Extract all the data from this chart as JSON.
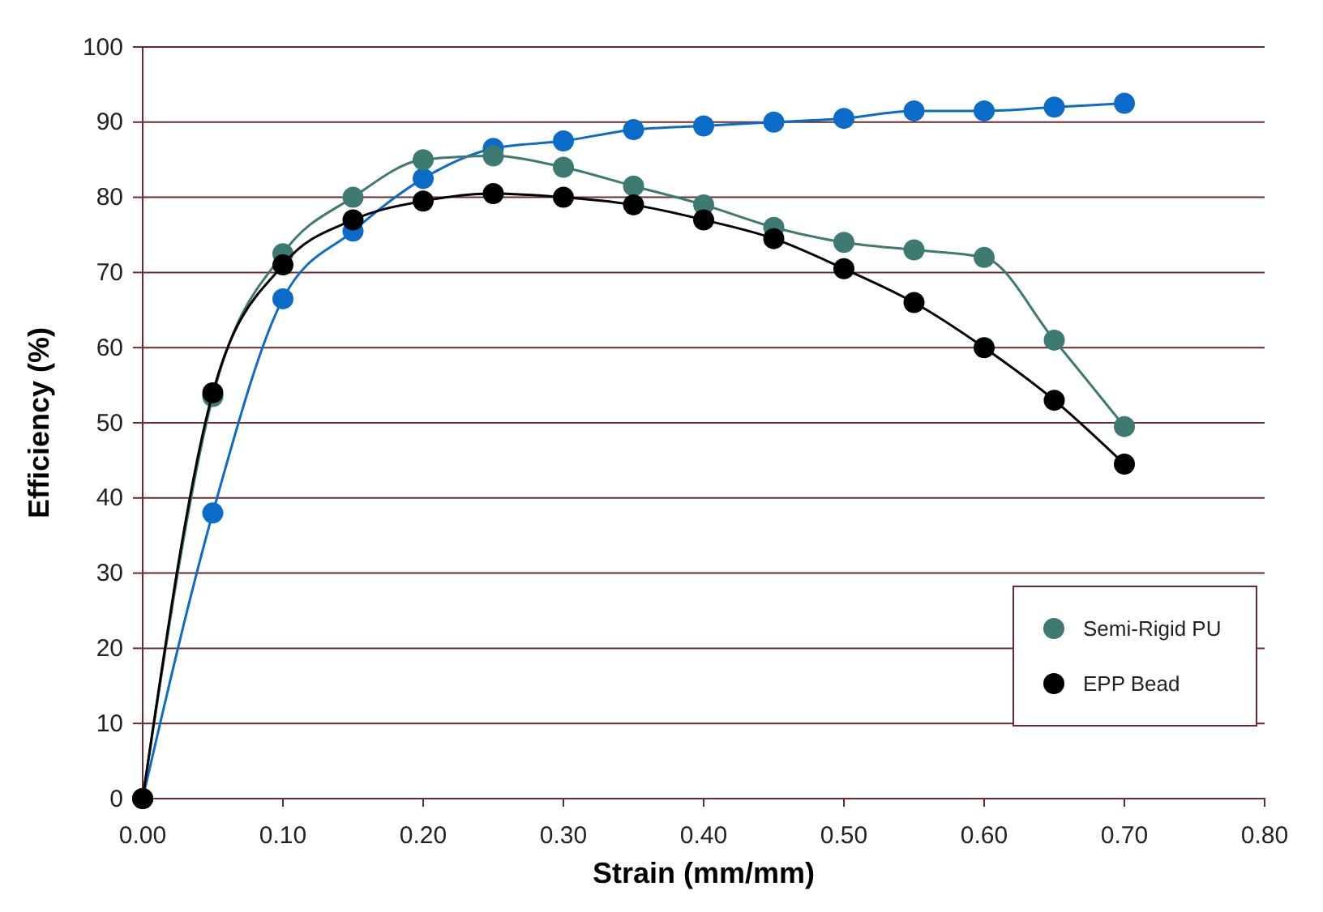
{
  "chart_data": {
    "type": "line",
    "xlabel": "Strain (mm/mm)",
    "ylabel": "Efficiency (%)",
    "x": [
      0,
      0.05,
      0.1,
      0.15,
      0.2,
      0.25,
      0.3,
      0.35,
      0.4,
      0.45,
      0.5,
      0.55,
      0.6,
      0.65,
      0.7
    ],
    "series": [
      {
        "color": "#0a6cc8",
        "values": [
          0,
          38,
          66.5,
          75.5,
          82.5,
          86.5,
          87.5,
          89,
          89.5,
          90,
          90.5,
          91.5,
          91.5,
          92,
          92.5
        ]
      },
      {
        "name": "Semi-Rigid PU",
        "color": "#3c7a72",
        "values": [
          0,
          53.5,
          72.5,
          80,
          85,
          85.5,
          84,
          81.5,
          79,
          76,
          74,
          73,
          72,
          61,
          49.5
        ]
      },
      {
        "name": "EPP Bead",
        "color": "#000000",
        "values": [
          0,
          54,
          71,
          77,
          79.5,
          80.5,
          80,
          79,
          77,
          74.5,
          70.5,
          66,
          60,
          53,
          44.5
        ]
      }
    ],
    "xlim": [
      0,
      0.8
    ],
    "xticks": [
      {
        "value": 0,
        "label": "0.00"
      },
      {
        "value": 0.1,
        "label": "0.10"
      },
      {
        "value": 0.2,
        "label": "0.20"
      },
      {
        "value": 0.3,
        "label": "0.30"
      },
      {
        "value": 0.4,
        "label": "0.40"
      },
      {
        "value": 0.5,
        "label": "0.50"
      },
      {
        "value": 0.6,
        "label": "0.60"
      },
      {
        "value": 0.7,
        "label": "0.70"
      },
      {
        "value": 0.8,
        "label": "0.80"
      }
    ],
    "ylim": [
      0,
      100
    ],
    "yticks": [
      0,
      10,
      20,
      30,
      40,
      50,
      60,
      70,
      80,
      90,
      100
    ],
    "grid": "y",
    "legend": "bottom right",
    "marker": "circle",
    "line_style": "solid"
  }
}
